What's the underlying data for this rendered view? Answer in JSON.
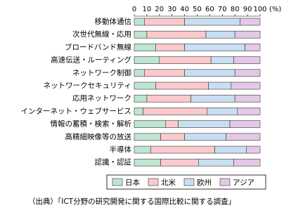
{
  "chart_data": {
    "type": "stacked_barh",
    "categories": [
      "移動体通信",
      "次世代無線・応用",
      "ブロードバンド無線",
      "高速伝送・ルーティング",
      "ネットワーク制御",
      "ネットワークセキュリティ",
      "応用ネットワーク",
      "インターネット・ウェブサービス",
      "情報の蓄積・検索・解析",
      "高精細映像等の放送",
      "半導体",
      "認識・認証"
    ],
    "series": [
      {
        "name": "日本",
        "color": "#bfe5d2",
        "values": [
          8,
          10,
          17,
          20,
          8,
          17,
          10,
          7,
          25,
          21,
          13,
          21
        ]
      },
      {
        "name": "北米",
        "color": "#fbc9cc",
        "values": [
          32,
          47,
          23,
          41,
          32,
          42,
          35,
          51,
          10,
          19,
          51,
          30
        ]
      },
      {
        "name": "欧州",
        "color": "#c9def1",
        "values": [
          44,
          23,
          48,
          18,
          40,
          18,
          35,
          24,
          41,
          33,
          25,
          28
        ]
      },
      {
        "name": "アジア",
        "color": "#e4c9e6",
        "values": [
          16,
          20,
          12,
          21,
          20,
          23,
          20,
          18,
          24,
          27,
          11,
          21
        ]
      }
    ],
    "xlim": [
      0,
      100
    ],
    "xticks": [
      0,
      10,
      20,
      30,
      40,
      50,
      60,
      70,
      80,
      90,
      100
    ],
    "x_unit": "(%)",
    "source": "（出典）「ICT分野の研究開発に関する国際比較に関する調査」"
  }
}
